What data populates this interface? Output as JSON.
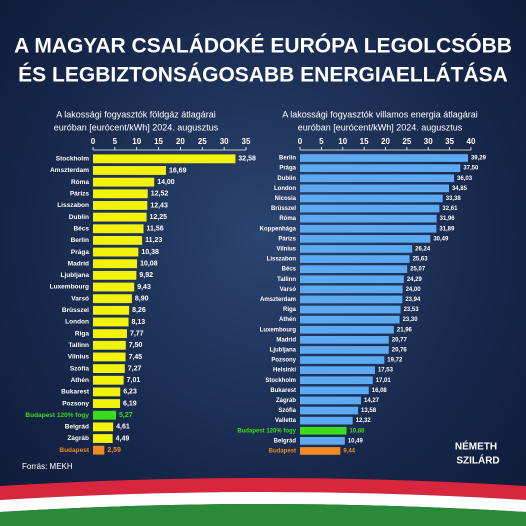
{
  "header": {
    "title_lines": [
      "A MAGYAR CSALÁDOKÉ EURÓPA LEGOLCSÓBB",
      "ÉS LEGBIZTONSÁGOSABB ENERGIAELLÁTÁSA"
    ]
  },
  "chart_data": [
    {
      "type": "hbar",
      "subtitle_lines": [
        "A lakossági fogyasztók földgáz átlagárai",
        "euróban [eurócent/kWh] 2024. augusztus"
      ],
      "categories": [
        "Stockholm",
        "Amszterdam",
        "Róma",
        "Párizs",
        "Lisszabon",
        "Dublin",
        "Bécs",
        "Berlin",
        "Prága",
        "Madrid",
        "Ljubljana",
        "Luxembourg",
        "Varsó",
        "Brüsszel",
        "London",
        "Riga",
        "Tallinn",
        "Vilnius",
        "Szófia",
        "Athén",
        "Bukarest",
        "Pozsony",
        "Budapest 120% fogy",
        "Belgrád",
        "Zágráb",
        "Budapest"
      ],
      "values": [
        32.58,
        16.69,
        14.0,
        12.52,
        12.43,
        12.25,
        11.56,
        11.23,
        10.38,
        10.08,
        9.92,
        9.43,
        8.9,
        8.26,
        8.13,
        7.77,
        7.5,
        7.45,
        7.27,
        7.01,
        6.23,
        6.19,
        5.27,
        4.61,
        4.49,
        2.59
      ],
      "value_labels": [
        "32,58",
        "16,69",
        "14,00",
        "12,52",
        "12,43",
        "12,25",
        "11,56",
        "11,23",
        "10,38",
        "10,08",
        "9,92",
        "9,43",
        "8,90",
        "8,26",
        "8,13",
        "7,77",
        "7,50",
        "7,45",
        "7,27",
        "7,01",
        "6,23",
        "6,19",
        "5,27",
        "4,61",
        "4,49",
        "2,59"
      ],
      "color": "#f2f20a",
      "colors": [
        "#f2f20a",
        "#f2f20a",
        "#f2f20a",
        "#f2f20a",
        "#f2f20a",
        "#f2f20a",
        "#f2f20a",
        "#f2f20a",
        "#f2f20a",
        "#f2f20a",
        "#f2f20a",
        "#f2f20a",
        "#f2f20a",
        "#f2f20a",
        "#f2f20a",
        "#f2f20a",
        "#f2f20a",
        "#f2f20a",
        "#f2f20a",
        "#f2f20a",
        "#f2f20a",
        "#f2f20a",
        "#3ddc1a",
        "#f2f20a",
        "#f2f20a",
        "#f08a24"
      ],
      "xlim": [
        0,
        35
      ],
      "xticks": [
        0,
        5,
        10,
        15,
        20,
        25,
        30,
        35
      ]
    },
    {
      "type": "hbar",
      "subtitle_lines": [
        "A lakossági fogyasztók villamos energia átlagárai",
        "euróban [eurócent/kWh] 2024. augusztus"
      ],
      "categories": [
        "Berlin",
        "Prága",
        "Dublin",
        "London",
        "Nicosia",
        "Brüsszel",
        "Róma",
        "Koppenhága",
        "Párizs",
        "Vilnius",
        "Lisszabon",
        "Bécs",
        "Tallinn",
        "Varsó",
        "Amszterdam",
        "Riga",
        "Athén",
        "Luxembourg",
        "Madrid",
        "Ljubljana",
        "Pozsony",
        "Helsinki",
        "Stockholm",
        "Bukarest",
        "Zágráb",
        "Szófia",
        "Valletta",
        "Budapest 120% fogy",
        "Belgrád",
        "Budapest"
      ],
      "values": [
        39.29,
        37.5,
        36.03,
        34.85,
        33.38,
        32.61,
        31.96,
        31.89,
        30.49,
        26.24,
        25.63,
        25.07,
        24.29,
        24.0,
        23.94,
        23.53,
        23.3,
        21.96,
        20.77,
        20.76,
        19.72,
        17.53,
        17.01,
        16.08,
        14.27,
        13.58,
        12.32,
        10.88,
        10.49,
        9.44
      ],
      "value_labels": [
        "39,29",
        "37,50",
        "36,03",
        "34,85",
        "33,38",
        "32,61",
        "31,96",
        "31,89",
        "30,49",
        "26,24",
        "25,63",
        "25,07",
        "24,29",
        "24,00",
        "23,94",
        "23,53",
        "23,30",
        "21,96",
        "20,77",
        "20,76",
        "19,72",
        "17,53",
        "17,01",
        "16,08",
        "14,27",
        "13,58",
        "12,32",
        "10,88",
        "10,49",
        "9,44"
      ],
      "color": "#5eaaf2",
      "colors": [
        "#5eaaf2",
        "#5eaaf2",
        "#5eaaf2",
        "#5eaaf2",
        "#5eaaf2",
        "#5eaaf2",
        "#5eaaf2",
        "#5eaaf2",
        "#5eaaf2",
        "#5eaaf2",
        "#5eaaf2",
        "#5eaaf2",
        "#5eaaf2",
        "#5eaaf2",
        "#5eaaf2",
        "#5eaaf2",
        "#5eaaf2",
        "#5eaaf2",
        "#5eaaf2",
        "#5eaaf2",
        "#5eaaf2",
        "#5eaaf2",
        "#5eaaf2",
        "#5eaaf2",
        "#5eaaf2",
        "#5eaaf2",
        "#5eaaf2",
        "#3ddc1a",
        "#5eaaf2",
        "#f08a24"
      ],
      "xlim": [
        0,
        40
      ],
      "xticks": [
        0,
        5,
        10,
        15,
        20,
        25,
        30,
        35,
        40
      ]
    }
  ],
  "footer": {
    "source": "Forrás: MEKH",
    "logo_lines": [
      "NÉMETH",
      "SZILÁRD"
    ]
  }
}
